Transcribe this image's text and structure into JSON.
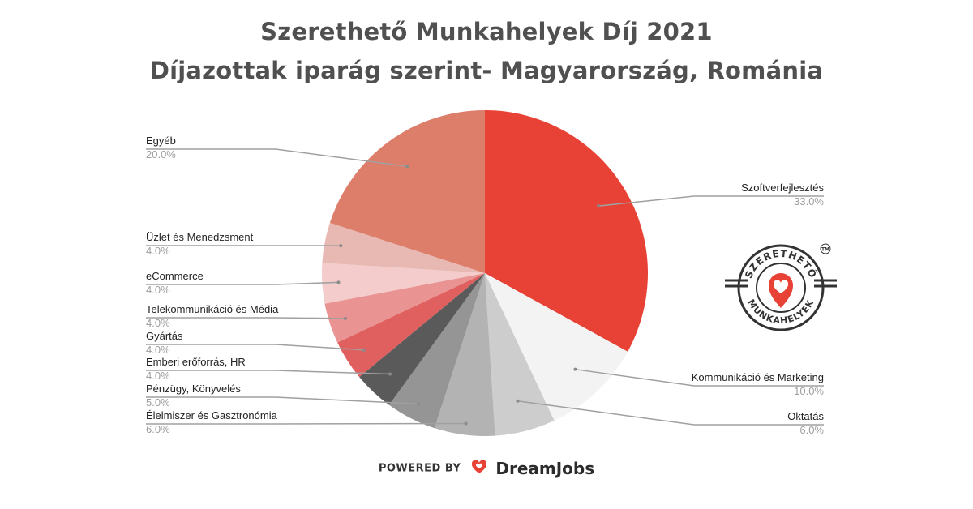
{
  "chart_data": {
    "type": "pie",
    "title": "Szerethető Munkahelyek Díj 2021",
    "subtitle": "Díjazottak iparág szerint- Magyarország, Románia",
    "slices": [
      {
        "label": "Szoftverfejlesztés",
        "value": 33.0,
        "pct_label": "33.0%",
        "color": "#e84236"
      },
      {
        "label": "Kommunikáció és Marketing",
        "value": 10.0,
        "pct_label": "10.0%",
        "color": "#f3f3f3"
      },
      {
        "label": "Oktatás",
        "value": 6.0,
        "pct_label": "6.0%",
        "color": "#cdcdcd"
      },
      {
        "label": "Élelmiszer és Gasztronómia",
        "value": 6.0,
        "pct_label": "6.0%",
        "color": "#b3b3b3"
      },
      {
        "label": "Pénzügy, Könyvelés",
        "value": 5.0,
        "pct_label": "5.0%",
        "color": "#959595"
      },
      {
        "label": "Emberi erőforrás, HR",
        "value": 4.0,
        "pct_label": "4.0%",
        "color": "#5a5a5a"
      },
      {
        "label": "Gyártás",
        "value": 4.0,
        "pct_label": "4.0%",
        "color": "#e06060"
      },
      {
        "label": "Telekommunikáció és Média",
        "value": 4.0,
        "pct_label": "4.0%",
        "color": "#e99393"
      },
      {
        "label": "eCommerce",
        "value": 4.0,
        "pct_label": "4.0%",
        "color": "#f4cccc"
      },
      {
        "label": "Üzlet és Menedzsment",
        "value": 4.0,
        "pct_label": "4.0%",
        "color": "#e8b9b3"
      },
      {
        "label": "Egyéb",
        "value": 20.0,
        "pct_label": "20.0%",
        "color": "#dd7e6b"
      }
    ],
    "start_angle": "12 o'clock",
    "direction": "clockwise",
    "legend": "none"
  },
  "badge": {
    "top_text": "SZERETHETŐ",
    "bottom_text": "MUNKAHELYEK",
    "tm": "TM"
  },
  "footer": {
    "powered_by": "POWERED BY",
    "brand": "DreamJobs"
  },
  "colors": {
    "title": "#505050",
    "badge_dark": "#333333",
    "badge_accent": "#e84236"
  },
  "icons": {
    "badge": "heart-map-pin-icon",
    "footer": "heart-logo-icon"
  }
}
